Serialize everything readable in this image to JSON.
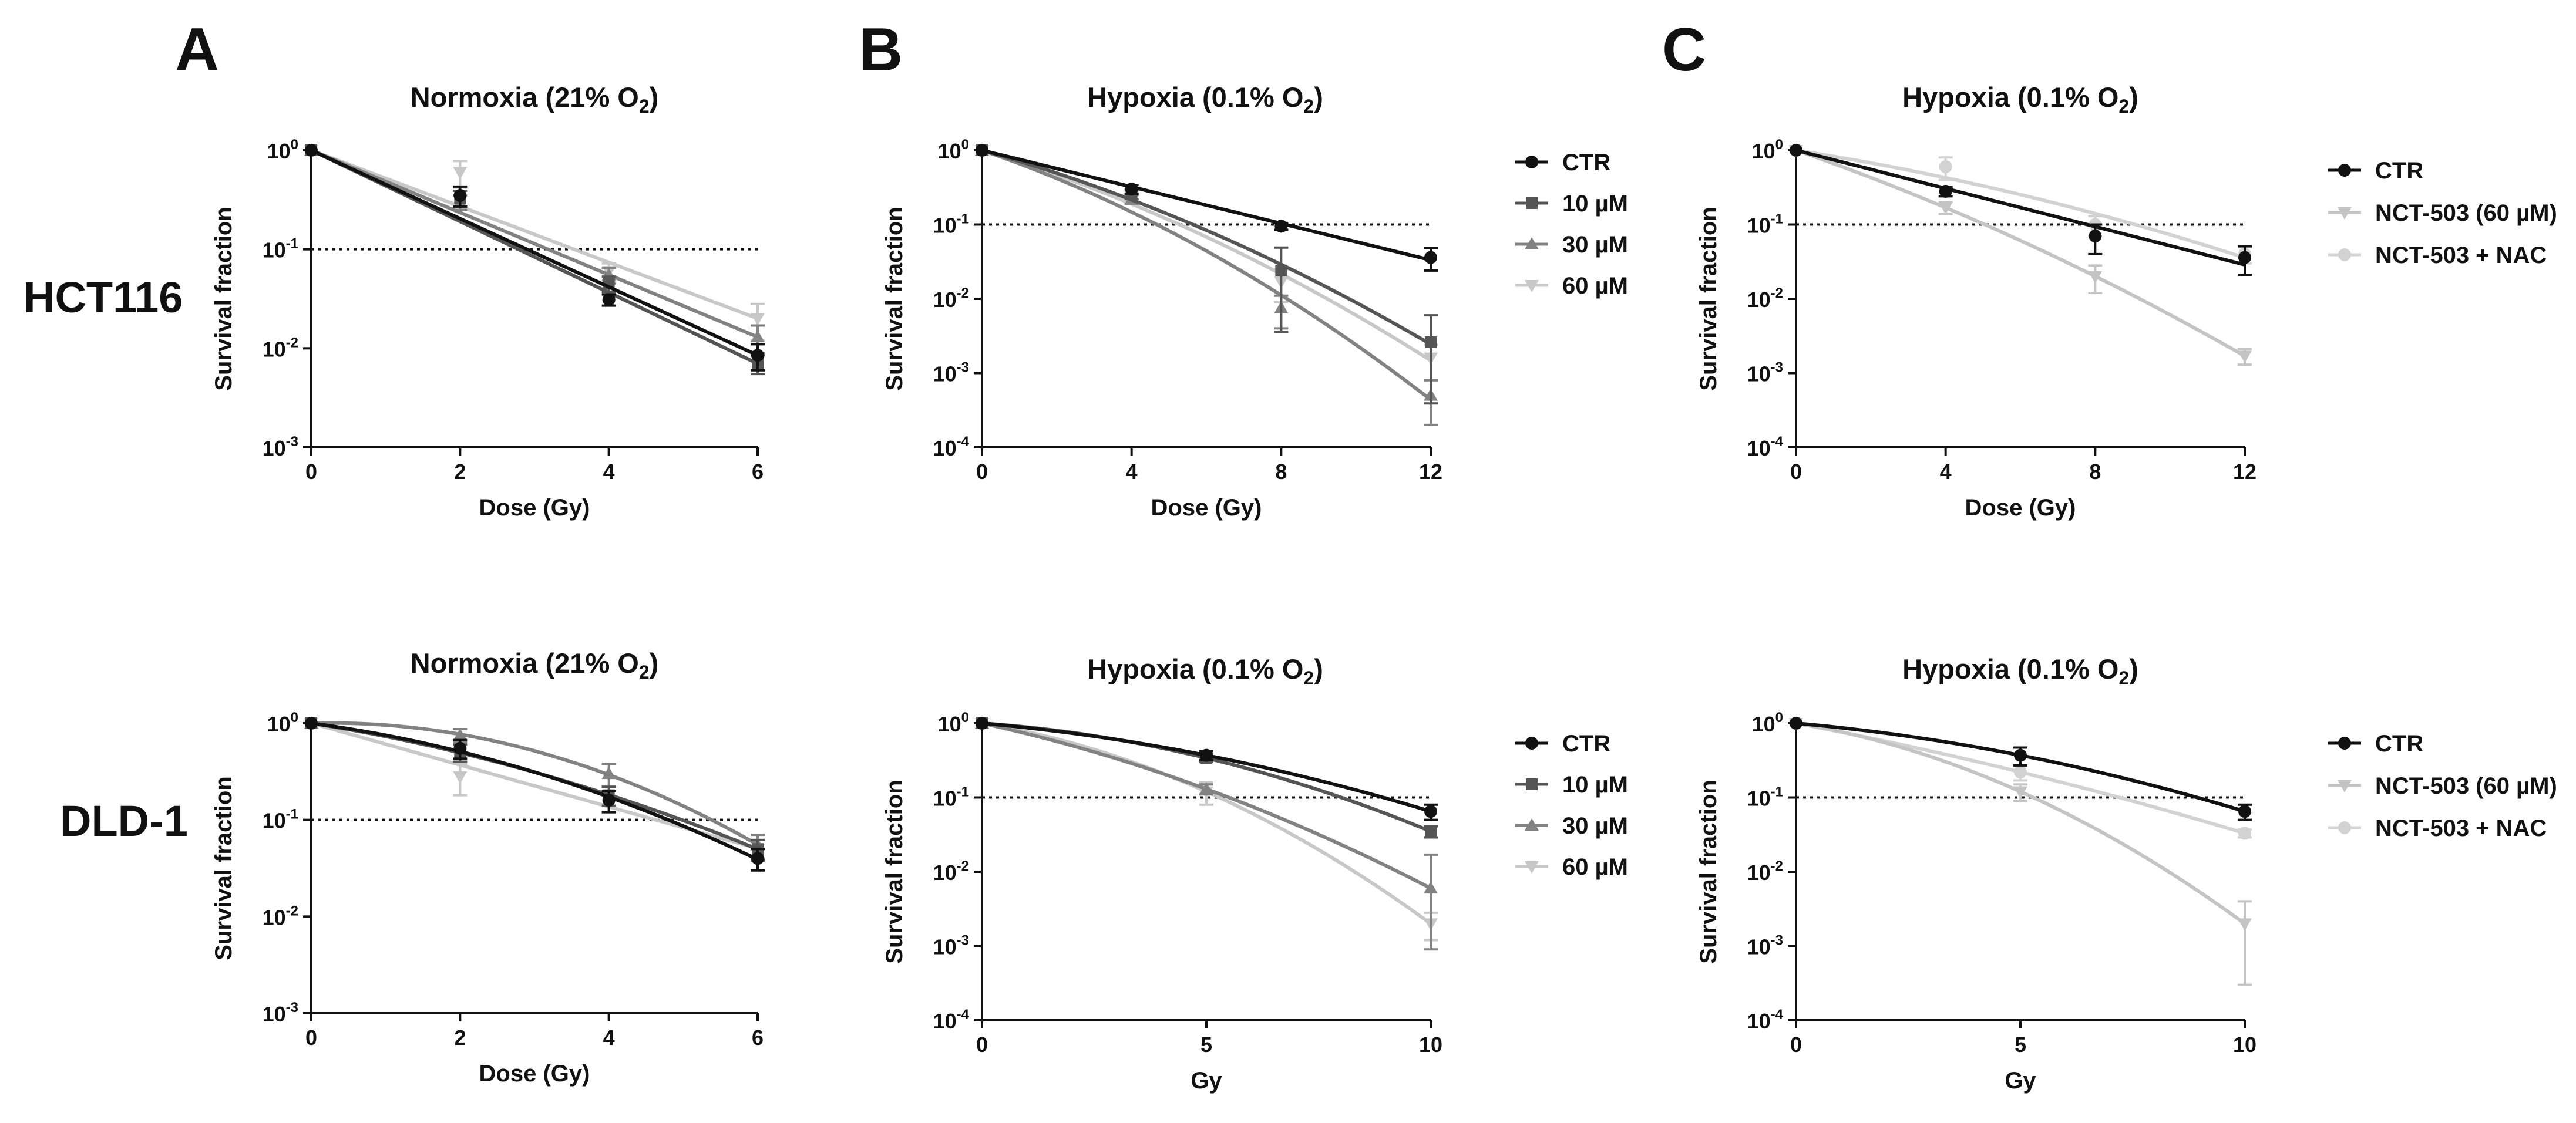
{
  "figure": {
    "row_labels": [
      "HCT116",
      "DLD-1"
    ],
    "panel_letters": [
      "A",
      "B",
      "C"
    ],
    "colors": {
      "ctr": "#111111",
      "c10": "#555555",
      "c30": "#828282",
      "c60": "#c8c8c8",
      "nct": "#c4c4c4",
      "nac": "#d2d2d2"
    }
  },
  "chart_data": [
    {
      "id": "A-top",
      "type": "scatter",
      "panel": "A",
      "row": "HCT116",
      "title": "Normoxia (21% O",
      "title_sub": "2",
      "title_end": ")",
      "xlabel": "Dose (Gy)",
      "ylabel": "Survival fraction",
      "xlim": [
        0,
        6
      ],
      "xticks": [
        0,
        2,
        4,
        6
      ],
      "ylim_exp": [
        -3,
        0
      ],
      "reference_line": 0.1,
      "series": [
        {
          "name": "CTR",
          "color": "#111111",
          "marker": "circle",
          "fit": "linear",
          "x": [
            0,
            2,
            4,
            6
          ],
          "y": [
            1.0,
            0.35,
            0.031,
            0.0085
          ],
          "err": [
            0,
            0.08,
            0.004,
            0.0025
          ]
        },
        {
          "name": "10 µM",
          "color": "#555555",
          "marker": "square",
          "fit": "linear",
          "x": [
            0,
            2,
            4,
            6
          ],
          "y": [
            1.0,
            0.33,
            0.045,
            0.007
          ],
          "err": [
            0,
            0.06,
            0.008,
            0.0015
          ]
        },
        {
          "name": "30 µM",
          "color": "#828282",
          "marker": "triangle",
          "fit": "linear",
          "x": [
            0,
            2,
            4,
            6
          ],
          "y": [
            1.0,
            0.3,
            0.055,
            0.013
          ],
          "err": [
            0,
            0.05,
            0.01,
            0.004
          ]
        },
        {
          "name": "60 µM",
          "color": "#c8c8c8",
          "marker": "triangle-down",
          "fit": "linear",
          "x": [
            0,
            2,
            4,
            6
          ],
          "y": [
            1.0,
            0.6,
            0.06,
            0.02
          ],
          "err": [
            0,
            0.18,
            0.012,
            0.008
          ]
        }
      ]
    },
    {
      "id": "B-top",
      "type": "scatter",
      "panel": "B",
      "row": "HCT116",
      "title": "Hypoxia (0.1% O",
      "title_sub": "2",
      "title_end": ")",
      "xlabel": "Dose (Gy)",
      "ylabel": "Survival fraction",
      "xlim": [
        0,
        12
      ],
      "xticks": [
        0,
        4,
        8,
        12
      ],
      "ylim_exp": [
        -4,
        0
      ],
      "reference_line": 0.1,
      "legend": [
        "CTR",
        "10 µM",
        "30 µM",
        "60 µM"
      ],
      "series": [
        {
          "name": "CTR",
          "color": "#111111",
          "marker": "circle",
          "fit": "lq",
          "x": [
            0,
            4,
            8,
            12
          ],
          "y": [
            1.0,
            0.3,
            0.095,
            0.036
          ],
          "err": [
            0,
            0.04,
            0.01,
            0.012
          ]
        },
        {
          "name": "10 µM",
          "color": "#555555",
          "marker": "square",
          "fit": "lq",
          "x": [
            0,
            4,
            8,
            12
          ],
          "y": [
            1.0,
            0.26,
            0.024,
            0.0026
          ],
          "err": [
            0,
            0.04,
            0.025,
            0.0034
          ]
        },
        {
          "name": "30 µM",
          "color": "#828282",
          "marker": "triangle",
          "fit": "lq",
          "x": [
            0,
            4,
            8,
            12
          ],
          "y": [
            1.0,
            0.22,
            0.0075,
            0.0005
          ],
          "err": [
            0,
            0.03,
            0.0035,
            0.0003
          ]
        },
        {
          "name": "60 µM",
          "color": "#c8c8c8",
          "marker": "triangle-down",
          "fit": "lq",
          "x": [
            0,
            4,
            8,
            12
          ],
          "y": [
            1.0,
            0.24,
            0.017,
            0.0016
          ],
          "err": [
            0,
            0.04,
            0.008,
            0.0008
          ]
        }
      ]
    },
    {
      "id": "C-top",
      "type": "scatter",
      "panel": "C",
      "row": "HCT116",
      "title": "Hypoxia (0.1% O",
      "title_sub": "2",
      "title_end": ")",
      "xlabel": "Dose (Gy)",
      "ylabel": "Survival fraction",
      "xlim": [
        0,
        12
      ],
      "xticks": [
        0,
        4,
        8,
        12
      ],
      "ylim_exp": [
        -4,
        0
      ],
      "reference_line": 0.1,
      "legend": [
        "CTR",
        "NCT-503 (60 µM)",
        "NCT-503 + NAC"
      ],
      "series": [
        {
          "name": "CTR",
          "color": "#111111",
          "marker": "circle",
          "fit": "lq",
          "x": [
            0,
            4,
            8,
            12
          ],
          "y": [
            1.0,
            0.28,
            0.07,
            0.036
          ],
          "err": [
            0,
            0.04,
            0.03,
            0.015
          ]
        },
        {
          "name": "NCT-503 (60 µM)",
          "color": "#c4c4c4",
          "marker": "triangle-down",
          "fit": "lq",
          "x": [
            0,
            4,
            8,
            12
          ],
          "y": [
            1.0,
            0.17,
            0.02,
            0.0017
          ],
          "err": [
            0,
            0.03,
            0.008,
            0.0004
          ]
        },
        {
          "name": "NCT-503 + NAC",
          "color": "#d2d2d2",
          "marker": "circle",
          "fit": "lq",
          "x": [
            0,
            4,
            8,
            12
          ],
          "y": [
            1.0,
            0.6,
            0.1,
            0.04
          ],
          "err": [
            0,
            0.2,
            0.03,
            0.01
          ]
        }
      ]
    },
    {
      "id": "A-bottom",
      "type": "scatter",
      "panel": "A",
      "row": "DLD-1",
      "title": "Normoxia (21% O",
      "title_sub": "2",
      "title_end": ")",
      "xlabel": "Dose (Gy)",
      "ylabel": "Survival fraction",
      "xlim": [
        0,
        6
      ],
      "xticks": [
        0,
        2,
        4,
        6
      ],
      "ylim_exp": [
        -3,
        0
      ],
      "reference_line": 0.1,
      "series": [
        {
          "name": "CTR",
          "color": "#111111",
          "marker": "circle",
          "fit": "lq",
          "x": [
            0,
            2,
            4,
            6
          ],
          "y": [
            1.0,
            0.55,
            0.16,
            0.04
          ],
          "err": [
            0,
            0.12,
            0.04,
            0.01
          ]
        },
        {
          "name": "10 µM",
          "color": "#555555",
          "marker": "square",
          "fit": "lq",
          "x": [
            0,
            2,
            4,
            6
          ],
          "y": [
            1.0,
            0.5,
            0.18,
            0.05
          ],
          "err": [
            0,
            0.1,
            0.04,
            0.012
          ]
        },
        {
          "name": "30 µM",
          "color": "#828282",
          "marker": "triangle",
          "fit": "lq",
          "x": [
            0,
            2,
            4,
            6
          ],
          "y": [
            1.0,
            0.75,
            0.3,
            0.055
          ],
          "err": [
            0,
            0.12,
            0.08,
            0.015
          ]
        },
        {
          "name": "60 µM",
          "color": "#c8c8c8",
          "marker": "triangle-down",
          "fit": "lq",
          "x": [
            0,
            2,
            4,
            6
          ],
          "y": [
            1.0,
            0.28,
            0.16,
            0.05
          ],
          "err": [
            0,
            0.1,
            0.04,
            0.012
          ]
        }
      ]
    },
    {
      "id": "B-bottom",
      "type": "scatter",
      "panel": "B",
      "row": "DLD-1",
      "title": "Hypoxia (0.1% O",
      "title_sub": "2",
      "title_end": ")",
      "xlabel": "Gy",
      "ylabel": "Survival fraction",
      "xlim": [
        0,
        10
      ],
      "xticks": [
        0,
        5,
        10
      ],
      "ylim_exp": [
        -4,
        0
      ],
      "reference_line": 0.1,
      "legend": [
        "CTR",
        "10 µM",
        "30 µM",
        "60 µM"
      ],
      "series": [
        {
          "name": "CTR",
          "color": "#111111",
          "marker": "circle",
          "fit": "lq",
          "x": [
            0,
            5,
            10
          ],
          "y": [
            1.0,
            0.37,
            0.065
          ],
          "err": [
            0,
            0.05,
            0.015
          ]
        },
        {
          "name": "10 µM",
          "color": "#555555",
          "marker": "square",
          "fit": "lq",
          "x": [
            0,
            5,
            10
          ],
          "y": [
            1.0,
            0.34,
            0.035
          ],
          "err": [
            0,
            0.04,
            0.006
          ]
        },
        {
          "name": "30 µM",
          "color": "#828282",
          "marker": "triangle",
          "fit": "lq",
          "x": [
            0,
            5,
            10
          ],
          "y": [
            1.0,
            0.13,
            0.006
          ],
          "err": [
            0,
            0.02,
            0.011
          ]
        },
        {
          "name": "60 µM",
          "color": "#c8c8c8",
          "marker": "triangle-down",
          "fit": "lq",
          "x": [
            0,
            5,
            10
          ],
          "y": [
            1.0,
            0.12,
            0.002
          ],
          "err": [
            0,
            0.04,
            0.0008
          ]
        }
      ]
    },
    {
      "id": "C-bottom",
      "type": "scatter",
      "panel": "C",
      "row": "DLD-1",
      "title": "Hypoxia (0.1% O",
      "title_sub": "2",
      "title_end": ")",
      "xlabel": "Gy",
      "ylabel": "Survival fraction",
      "xlim": [
        0,
        10
      ],
      "xticks": [
        0,
        5,
        10
      ],
      "ylim_exp": [
        -4,
        0
      ],
      "reference_line": 0.1,
      "legend": [
        "CTR",
        "NCT-503 (60 µM)",
        "NCT-503 + NAC"
      ],
      "series": [
        {
          "name": "CTR",
          "color": "#111111",
          "marker": "circle",
          "fit": "lq",
          "x": [
            0,
            5,
            10
          ],
          "y": [
            1.0,
            0.37,
            0.065
          ],
          "err": [
            0,
            0.1,
            0.015
          ]
        },
        {
          "name": "NCT-503 (60 µM)",
          "color": "#c4c4c4",
          "marker": "triangle-down",
          "fit": "lq",
          "x": [
            0,
            5,
            10
          ],
          "y": [
            1.0,
            0.12,
            0.002
          ],
          "err": [
            0,
            0.03,
            0.002
          ]
        },
        {
          "name": "NCT-503 + NAC",
          "color": "#d2d2d2",
          "marker": "circle",
          "fit": "lq",
          "x": [
            0,
            5,
            10
          ],
          "y": [
            1.0,
            0.22,
            0.033
          ],
          "err": [
            0,
            0.05,
            0.004
          ]
        }
      ]
    }
  ]
}
